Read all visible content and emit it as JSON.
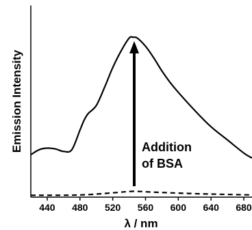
{
  "chart_data": {
    "type": "line",
    "xlabel": "λ / nm",
    "ylabel": "Emission Intensity",
    "xlim": [
      420,
      690
    ],
    "ylim": [
      0,
      100
    ],
    "x_ticks": [
      "440",
      "480",
      "520",
      "560",
      "600",
      "640",
      "680"
    ],
    "y_ticks": [],
    "grid": false,
    "legend": "none",
    "series": [
      {
        "style": "solid",
        "color": "#000000",
        "x": [
          420,
          430,
          440,
          450,
          460,
          470,
          480,
          485,
          490,
          500,
          510,
          520,
          530,
          540,
          545,
          550,
          560,
          570,
          580,
          590,
          600,
          620,
          640,
          660,
          680,
          690
        ],
        "y": [
          25,
          28,
          29,
          28.5,
          27,
          28,
          40,
          46,
          50,
          55,
          66,
          78,
          88,
          96,
          96.5,
          96,
          91,
          84,
          76,
          69,
          63,
          52,
          42,
          34,
          26,
          23
        ]
      },
      {
        "style": "dashed",
        "color": "#000000",
        "x": [
          420,
          480,
          520,
          545,
          570,
          620,
          690
        ],
        "y": [
          0.3,
          0.5,
          1.8,
          2.7,
          2.2,
          1.3,
          0.5
        ]
      }
    ],
    "annotations": [
      {
        "text_line1": "Addition",
        "text_line2": "of BSA",
        "arrow": "up"
      }
    ]
  }
}
